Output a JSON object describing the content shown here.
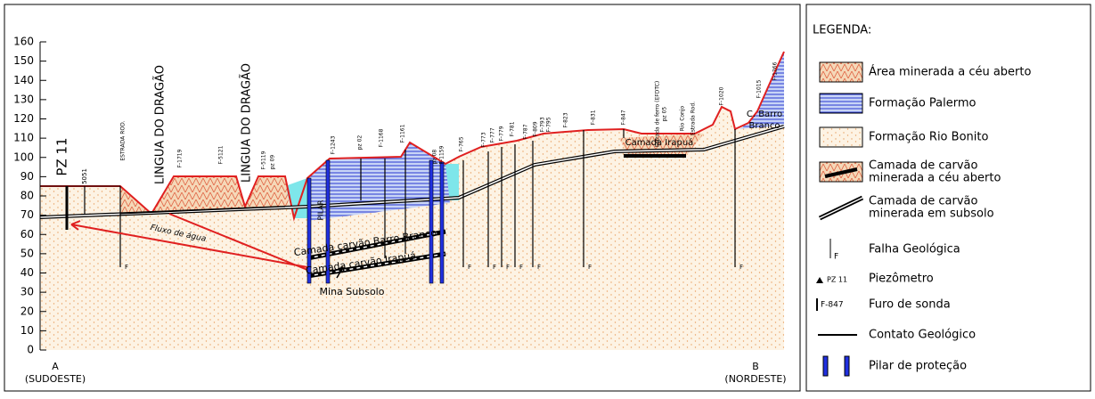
{
  "axis": {
    "ticks": [
      "0",
      "10",
      "20",
      "30",
      "40",
      "50",
      "60",
      "70",
      "80",
      "90",
      "100",
      "110",
      "120",
      "130",
      "140",
      "150",
      "160"
    ]
  },
  "ends": {
    "a": {
      "label": "A",
      "sub": "(SUDOESTE)"
    },
    "b": {
      "label": "B",
      "sub": "(NORDESTE)"
    }
  },
  "section": {
    "labels": [
      "PZ 11",
      "5051",
      "ESTRADA ROD.",
      "LINGUA DO DRAGÃO",
      "LINGUA DO DRAGÃO",
      "F-1719",
      "F-5121",
      "F-5119",
      "pz 09",
      "F-1243",
      "pz 02",
      "F-1168",
      "F-1161",
      "pz 08",
      "F-1159",
      "F-765",
      "F-773",
      "F-777",
      "F-779",
      "F-781",
      "F-787",
      "F-809",
      "F-793",
      "F-795",
      "F-823",
      "F-831",
      "F-847",
      "Estrada de ferro (EFDTC)",
      "pz 05",
      "Rio Conjo",
      "Estrada Rod.",
      "F-1020",
      "F-1015",
      "F-1266",
      "C. Barro",
      "Branco",
      "Camada Irapuá",
      "Fluxo de água",
      "Camada carvão Barro Branco",
      "Camada carvão Irapuá",
      "Mina Subsolo",
      "PILAR"
    ],
    "faults": [
      "F",
      "F",
      "F",
      "F",
      "F",
      "F",
      "F",
      "F"
    ]
  },
  "legend": {
    "title": "LEGENDA:",
    "items": [
      {
        "label": [
          "Área minerada a céu aberto"
        ]
      },
      {
        "label": [
          "Formação Palermo"
        ]
      },
      {
        "label": [
          "Formação Rio Bonito"
        ]
      },
      {
        "label": [
          "Camada de carvão",
          "minerada a céu aberto"
        ]
      },
      {
        "label": [
          "Camada de carvão",
          "minerada em subsolo"
        ]
      },
      {
        "label": [
          "Falha Geológica"
        ],
        "symbol": "F"
      },
      {
        "label": [
          "Piezômetro"
        ],
        "symbol": "PZ 11"
      },
      {
        "label": [
          "Furo de sonda"
        ],
        "symbol": "F-847"
      },
      {
        "label": [
          "Contato Geológico"
        ]
      },
      {
        "label": [
          "Pilar de proteção"
        ]
      }
    ]
  }
}
